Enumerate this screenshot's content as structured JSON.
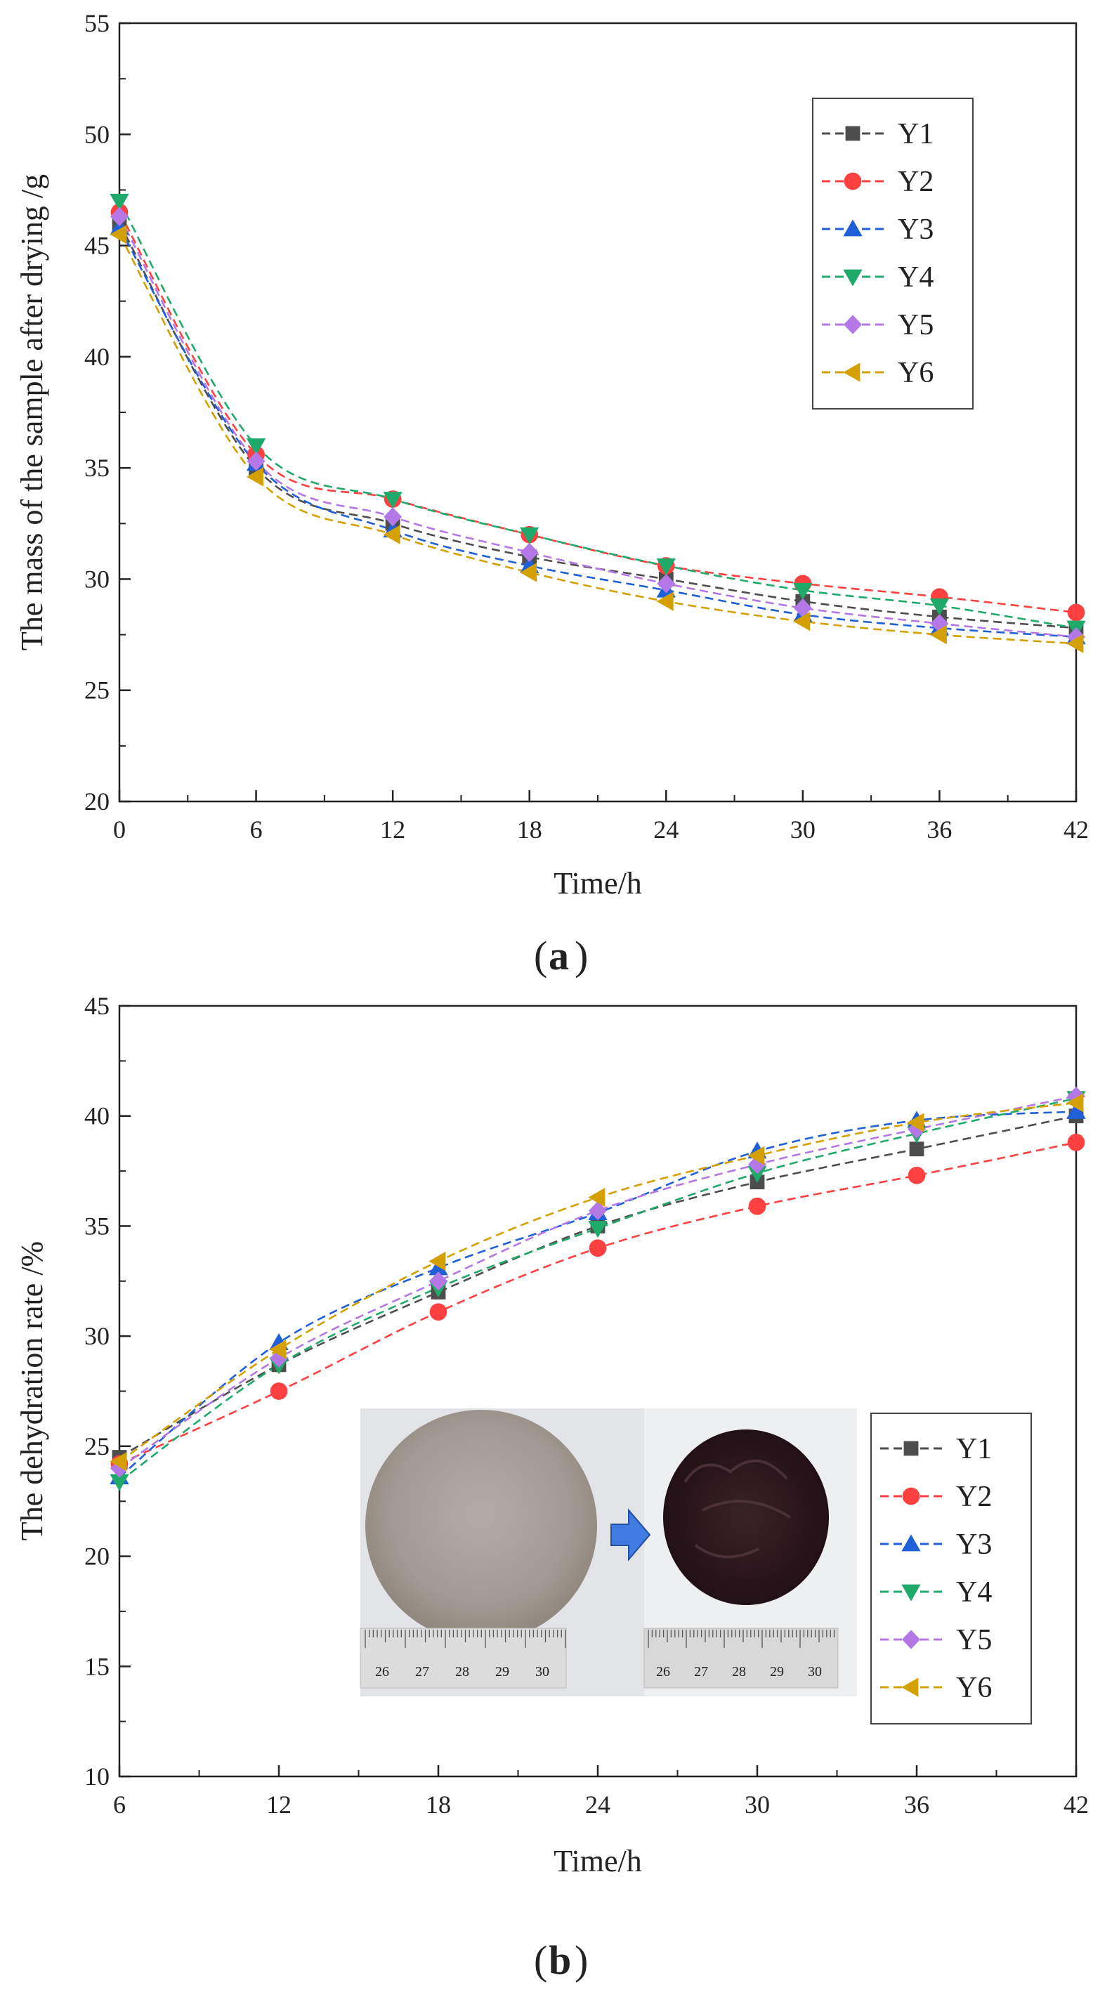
{
  "chart_data": [
    {
      "type": "line",
      "panel_label": "a",
      "xlabel": "Time/h",
      "ylabel": "The mass of the sample after drying /g",
      "x": [
        0,
        6,
        12,
        18,
        24,
        30,
        36,
        42
      ],
      "xlim": [
        0,
        42
      ],
      "ylim": [
        20,
        55
      ],
      "xticks": [
        0,
        6,
        12,
        18,
        24,
        30,
        36,
        42
      ],
      "yticks": [
        20,
        25,
        30,
        35,
        40,
        45,
        50,
        55
      ],
      "grid": false,
      "legend_position": "top-right",
      "series": [
        {
          "name": "Y1",
          "color": "#4d4d4d",
          "marker": "square",
          "values": [
            46.0,
            35.0,
            32.5,
            31.0,
            30.0,
            29.0,
            28.3,
            27.8
          ]
        },
        {
          "name": "Y2",
          "color": "#ff4040",
          "marker": "circle",
          "values": [
            46.5,
            35.6,
            33.6,
            32.0,
            30.6,
            29.8,
            29.2,
            28.5
          ]
        },
        {
          "name": "Y3",
          "color": "#1f5fd8",
          "marker": "triangle-up",
          "values": [
            45.8,
            35.2,
            32.2,
            30.6,
            29.5,
            28.4,
            27.8,
            27.4
          ]
        },
        {
          "name": "Y4",
          "color": "#1faa6a",
          "marker": "triangle-down",
          "values": [
            47.0,
            36.0,
            33.6,
            32.0,
            30.6,
            29.5,
            28.8,
            27.8
          ]
        },
        {
          "name": "Y5",
          "color": "#b478e6",
          "marker": "diamond",
          "values": [
            46.3,
            35.3,
            32.8,
            31.2,
            29.8,
            28.7,
            28.0,
            27.4
          ]
        },
        {
          "name": "Y6",
          "color": "#d4a000",
          "marker": "triangle-left",
          "values": [
            45.5,
            34.6,
            32.0,
            30.3,
            29.0,
            28.1,
            27.5,
            27.1
          ]
        }
      ]
    },
    {
      "type": "line",
      "panel_label": "b",
      "xlabel": "Time/h",
      "ylabel": "The dehydration rate /%",
      "x": [
        6,
        12,
        18,
        24,
        30,
        36,
        42
      ],
      "xlim": [
        6,
        42
      ],
      "ylim": [
        10,
        45
      ],
      "xticks": [
        6,
        12,
        18,
        24,
        30,
        36,
        42
      ],
      "yticks": [
        10,
        15,
        20,
        25,
        30,
        35,
        40,
        45
      ],
      "grid": false,
      "legend_position": "bottom-right",
      "inset_photo": {
        "ruler_labels": [
          "26",
          "27",
          "28",
          "29",
          "30"
        ]
      },
      "series": [
        {
          "name": "Y1",
          "color": "#4d4d4d",
          "marker": "square",
          "values": [
            24.5,
            28.7,
            32.0,
            35.0,
            37.0,
            38.5,
            40.0
          ]
        },
        {
          "name": "Y2",
          "color": "#ff4040",
          "marker": "circle",
          "values": [
            24.2,
            27.5,
            31.1,
            34.0,
            35.9,
            37.3,
            38.8
          ]
        },
        {
          "name": "Y3",
          "color": "#1f5fd8",
          "marker": "triangle-up",
          "values": [
            23.6,
            29.7,
            33.1,
            35.6,
            38.4,
            39.8,
            40.2
          ]
        },
        {
          "name": "Y4",
          "color": "#1faa6a",
          "marker": "triangle-down",
          "values": [
            23.4,
            28.7,
            32.2,
            34.9,
            37.4,
            39.2,
            40.8
          ]
        },
        {
          "name": "Y5",
          "color": "#b478e6",
          "marker": "diamond",
          "values": [
            24.0,
            29.0,
            32.5,
            35.7,
            37.8,
            39.4,
            40.9
          ]
        },
        {
          "name": "Y6",
          "color": "#d4a000",
          "marker": "triangle-left",
          "values": [
            24.3,
            29.4,
            33.4,
            36.3,
            38.2,
            39.7,
            40.6
          ]
        }
      ]
    }
  ]
}
